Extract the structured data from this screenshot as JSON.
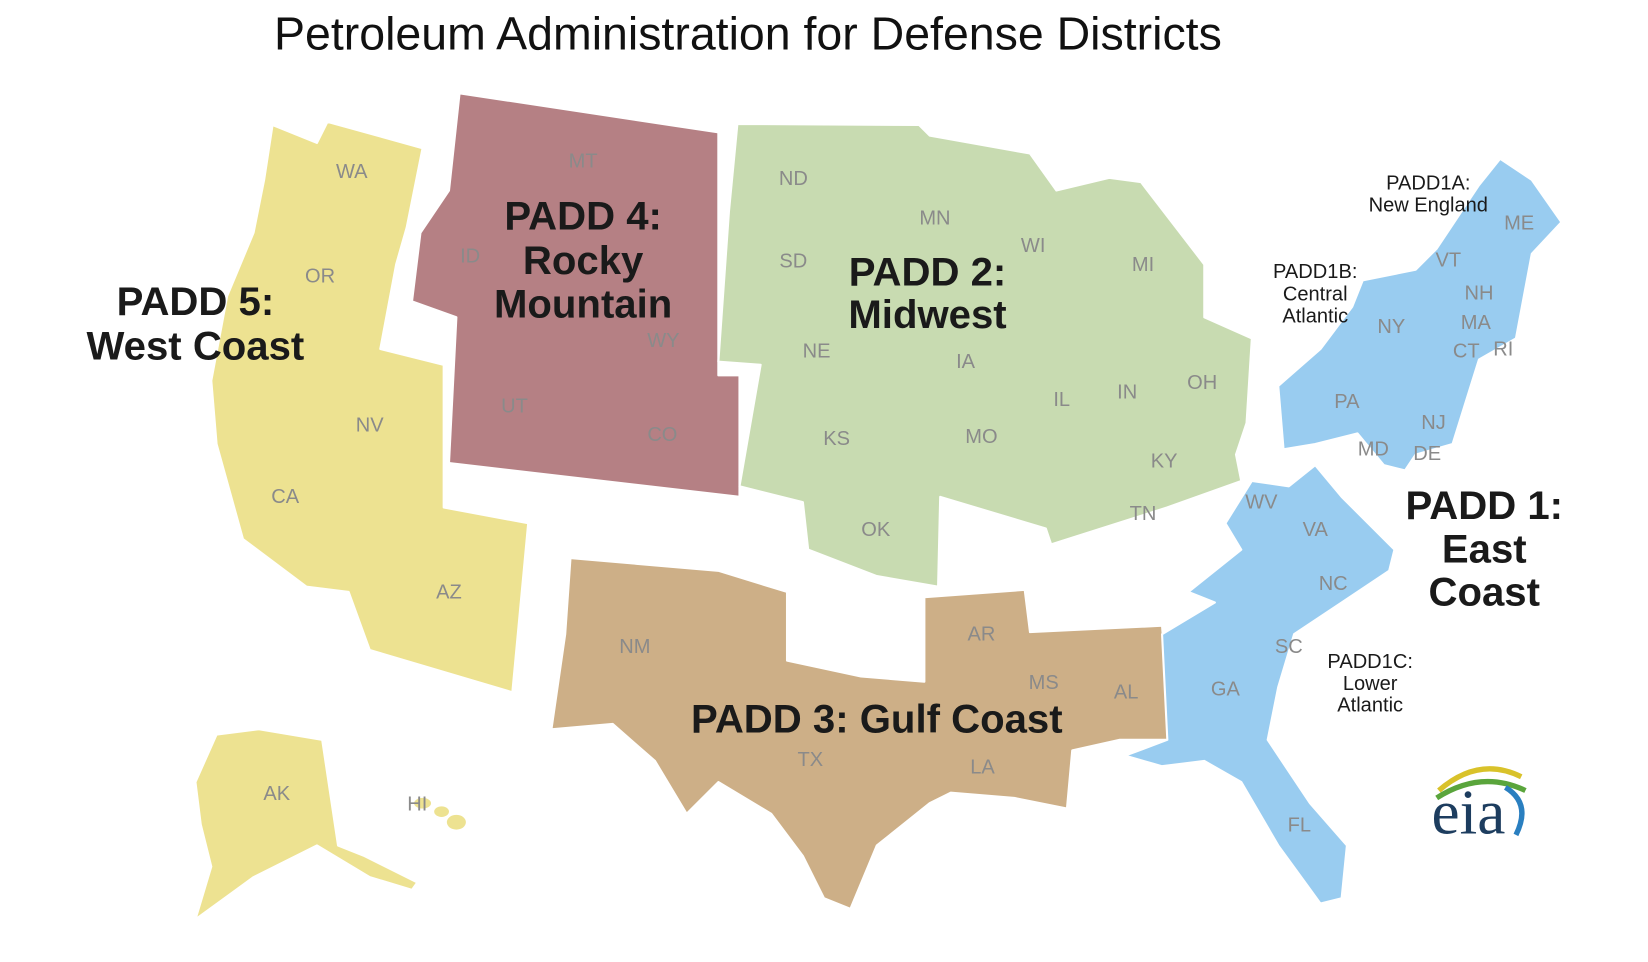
{
  "title": "Petroleum Administration for Defense Districts",
  "regions": [
    {
      "lines": [
        "PADD 5:",
        "West Coast"
      ],
      "color": "#ede291",
      "states": [
        "WA",
        "OR",
        "NV",
        "CA",
        "AZ",
        "AK",
        "HI"
      ]
    },
    {
      "lines": [
        "PADD 4:",
        "Rocky",
        "Mountain"
      ],
      "color": "#b58084",
      "states": [
        "MT",
        "ID",
        "WY",
        "UT",
        "CO"
      ]
    },
    {
      "lines": [
        "PADD 2:",
        "Midwest"
      ],
      "color": "#c8dbb1",
      "states": [
        "ND",
        "SD",
        "NE",
        "KS",
        "OK",
        "MN",
        "IA",
        "MO",
        "WI",
        "IL",
        "MI",
        "IN",
        "OH",
        "KY",
        "TN"
      ]
    },
    {
      "lines": [
        "PADD 3: Gulf Coast"
      ],
      "color": "#cdaf87",
      "states": [
        "NM",
        "TX",
        "AR",
        "LA",
        "MS",
        "AL"
      ]
    },
    {
      "lines": [
        "PADD 1:",
        "East",
        "Coast"
      ],
      "color": "#99ccf0",
      "states": [
        "ME",
        "VT",
        "NH",
        "MA",
        "CT",
        "RI",
        "NY",
        "PA",
        "NJ",
        "MD",
        "DE",
        "WV",
        "VA",
        "NC",
        "SC",
        "GA",
        "FL"
      ],
      "subregions": [
        {
          "lines": [
            "PADD1A:",
            "New England"
          ]
        },
        {
          "lines": [
            "PADD1B:",
            "Central",
            "Atlantic"
          ]
        },
        {
          "lines": [
            "PADD1C:",
            "Lower",
            "Atlantic"
          ]
        }
      ]
    }
  ],
  "logo": "eia"
}
